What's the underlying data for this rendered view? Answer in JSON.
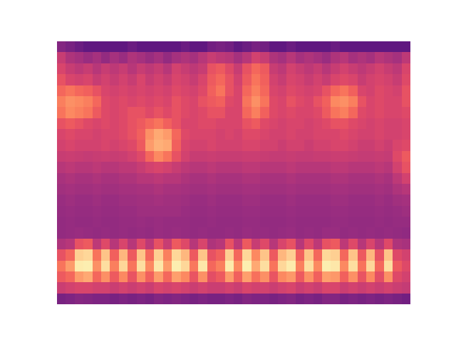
{
  "chart_data": {
    "type": "heatmap",
    "color": "magma",
    "color_range": [
      -20,
      100
    ],
    "tick_labels": false,
    "values": [
      [
        25,
        22,
        18,
        15,
        15,
        15,
        15,
        15,
        18,
        15,
        15,
        15,
        15,
        15,
        18,
        15,
        15,
        20,
        22,
        20,
        15,
        18,
        22,
        20,
        15,
        15,
        18,
        15,
        15,
        15,
        15,
        18,
        15,
        15,
        15,
        15,
        15,
        15,
        15,
        15
      ],
      [
        45,
        38,
        35,
        32,
        35,
        30,
        35,
        32,
        38,
        35,
        32,
        35,
        30,
        35,
        38,
        35,
        40,
        45,
        42,
        40,
        35,
        40,
        48,
        45,
        38,
        35,
        40,
        35,
        38,
        35,
        32,
        38,
        40,
        35,
        38,
        35,
        40,
        38,
        35,
        42
      ],
      [
        50,
        45,
        42,
        45,
        40,
        45,
        42,
        45,
        40,
        45,
        42,
        45,
        40,
        48,
        45,
        42,
        45,
        55,
        58,
        52,
        45,
        55,
        62,
        58,
        45,
        42,
        48,
        45,
        42,
        45,
        40,
        45,
        48,
        45,
        42,
        45,
        48,
        45,
        42,
        50
      ],
      [
        55,
        50,
        48,
        50,
        45,
        48,
        45,
        48,
        45,
        50,
        45,
        48,
        45,
        50,
        48,
        45,
        50,
        58,
        62,
        55,
        48,
        58,
        65,
        60,
        48,
        45,
        50,
        48,
        45,
        48,
        45,
        50,
        52,
        50,
        45,
        48,
        50,
        48,
        45,
        52
      ],
      [
        62,
        65,
        62,
        60,
        55,
        50,
        48,
        50,
        48,
        50,
        48,
        50,
        48,
        52,
        50,
        48,
        52,
        60,
        65,
        55,
        50,
        62,
        68,
        62,
        50,
        48,
        52,
        50,
        48,
        50,
        55,
        62,
        65,
        60,
        50,
        48,
        52,
        50,
        48,
        55
      ],
      [
        68,
        72,
        70,
        68,
        62,
        52,
        50,
        52,
        50,
        52,
        50,
        52,
        50,
        55,
        52,
        50,
        55,
        58,
        60,
        52,
        50,
        65,
        72,
        65,
        52,
        50,
        55,
        52,
        50,
        55,
        60,
        70,
        72,
        68,
        55,
        50,
        52,
        50,
        50,
        55
      ],
      [
        65,
        70,
        68,
        65,
        58,
        52,
        50,
        52,
        55,
        55,
        52,
        55,
        52,
        55,
        52,
        50,
        52,
        55,
        55,
        50,
        50,
        62,
        68,
        60,
        52,
        50,
        52,
        50,
        50,
        52,
        58,
        65,
        68,
        62,
        52,
        50,
        52,
        50,
        50,
        52
      ],
      [
        55,
        58,
        55,
        52,
        50,
        52,
        50,
        52,
        55,
        58,
        62,
        65,
        60,
        55,
        50,
        50,
        52,
        52,
        50,
        50,
        50,
        55,
        58,
        52,
        50,
        48,
        50,
        50,
        48,
        50,
        52,
        55,
        55,
        52,
        50,
        48,
        50,
        48,
        48,
        50
      ],
      [
        50,
        52,
        50,
        50,
        48,
        50,
        50,
        52,
        55,
        60,
        72,
        78,
        75,
        62,
        52,
        50,
        50,
        50,
        48,
        50,
        48,
        52,
        52,
        50,
        48,
        48,
        50,
        48,
        48,
        50,
        50,
        50,
        52,
        50,
        48,
        48,
        50,
        48,
        48,
        50
      ],
      [
        48,
        50,
        48,
        48,
        48,
        50,
        48,
        50,
        52,
        58,
        75,
        80,
        78,
        60,
        50,
        48,
        48,
        50,
        48,
        48,
        48,
        50,
        50,
        48,
        48,
        46,
        48,
        48,
        46,
        48,
        48,
        50,
        50,
        48,
        46,
        46,
        48,
        46,
        50,
        52
      ],
      [
        45,
        46,
        45,
        44,
        45,
        46,
        45,
        46,
        48,
        52,
        62,
        70,
        65,
        55,
        48,
        45,
        45,
        46,
        45,
        45,
        45,
        46,
        46,
        45,
        44,
        44,
        45,
        44,
        44,
        45,
        45,
        46,
        46,
        45,
        44,
        44,
        45,
        44,
        52,
        58
      ],
      [
        40,
        42,
        40,
        40,
        42,
        40,
        40,
        42,
        42,
        45,
        48,
        50,
        48,
        45,
        42,
        40,
        40,
        42,
        40,
        40,
        40,
        42,
        42,
        40,
        40,
        40,
        42,
        40,
        40,
        40,
        40,
        42,
        42,
        40,
        40,
        40,
        42,
        40,
        48,
        55
      ],
      [
        36,
        38,
        36,
        36,
        38,
        36,
        36,
        38,
        38,
        40,
        40,
        42,
        40,
        40,
        38,
        36,
        36,
        38,
        36,
        36,
        36,
        38,
        38,
        36,
        36,
        36,
        38,
        36,
        36,
        36,
        36,
        38,
        38,
        36,
        36,
        36,
        38,
        36,
        42,
        48
      ],
      [
        34,
        35,
        34,
        34,
        35,
        34,
        34,
        35,
        35,
        36,
        36,
        38,
        36,
        36,
        35,
        34,
        34,
        35,
        34,
        34,
        34,
        35,
        35,
        34,
        34,
        34,
        35,
        34,
        34,
        34,
        34,
        35,
        35,
        34,
        34,
        34,
        35,
        34,
        38,
        40
      ],
      [
        32,
        33,
        32,
        32,
        33,
        32,
        32,
        33,
        33,
        34,
        34,
        35,
        34,
        34,
        33,
        32,
        32,
        33,
        32,
        32,
        32,
        33,
        33,
        32,
        32,
        32,
        33,
        32,
        32,
        32,
        32,
        33,
        33,
        32,
        32,
        32,
        33,
        32,
        34,
        35
      ],
      [
        31,
        32,
        31,
        31,
        32,
        31,
        31,
        32,
        32,
        33,
        33,
        33,
        33,
        33,
        32,
        31,
        31,
        32,
        31,
        31,
        31,
        32,
        32,
        31,
        31,
        31,
        32,
        31,
        31,
        31,
        31,
        32,
        32,
        31,
        31,
        31,
        32,
        31,
        32,
        33
      ],
      [
        30,
        31,
        30,
        30,
        31,
        30,
        30,
        31,
        31,
        32,
        31,
        32,
        31,
        31,
        31,
        30,
        30,
        31,
        30,
        30,
        30,
        31,
        31,
        30,
        30,
        30,
        31,
        30,
        30,
        30,
        30,
        31,
        31,
        30,
        30,
        30,
        31,
        30,
        31,
        31
      ],
      [
        30,
        31,
        32,
        31,
        30,
        31,
        30,
        31,
        30,
        31,
        30,
        32,
        31,
        32,
        31,
        30,
        31,
        30,
        30,
        31,
        30,
        32,
        31,
        31,
        30,
        31,
        32,
        30,
        31,
        30,
        32,
        32,
        30,
        31,
        30,
        31,
        30,
        31,
        30,
        29
      ],
      [
        38,
        40,
        55,
        58,
        42,
        52,
        40,
        50,
        40,
        52,
        42,
        55,
        45,
        58,
        52,
        40,
        50,
        38,
        40,
        55,
        42,
        58,
        45,
        52,
        40,
        50,
        55,
        40,
        52,
        42,
        55,
        58,
        42,
        52,
        40,
        50,
        40,
        52,
        38,
        36
      ],
      [
        55,
        62,
        88,
        90,
        65,
        85,
        60,
        82,
        58,
        85,
        62,
        88,
        68,
        90,
        82,
        58,
        85,
        55,
        60,
        88,
        62,
        90,
        70,
        85,
        58,
        82,
        88,
        60,
        85,
        62,
        90,
        88,
        62,
        85,
        58,
        82,
        55,
        85,
        52,
        48
      ],
      [
        65,
        75,
        95,
        96,
        72,
        92,
        68,
        90,
        65,
        92,
        70,
        94,
        75,
        96,
        90,
        66,
        94,
        62,
        68,
        95,
        70,
        96,
        78,
        92,
        65,
        90,
        95,
        68,
        92,
        70,
        96,
        94,
        70,
        92,
        65,
        90,
        62,
        92,
        58,
        52
      ],
      [
        58,
        62,
        75,
        78,
        62,
        72,
        58,
        70,
        56,
        72,
        60,
        75,
        62,
        76,
        70,
        56,
        72,
        54,
        58,
        75,
        60,
        76,
        64,
        72,
        56,
        70,
        74,
        58,
        72,
        60,
        76,
        74,
        60,
        72,
        56,
        70,
        54,
        72,
        52,
        48
      ],
      [
        46,
        48,
        50,
        50,
        48,
        48,
        46,
        48,
        46,
        48,
        46,
        50,
        48,
        50,
        48,
        46,
        48,
        46,
        46,
        48,
        46,
        50,
        48,
        48,
        46,
        48,
        50,
        46,
        48,
        46,
        50,
        50,
        46,
        48,
        46,
        48,
        46,
        48,
        46,
        44
      ],
      [
        22,
        24,
        26,
        25,
        24,
        24,
        22,
        24,
        22,
        24,
        22,
        25,
        24,
        25,
        24,
        22,
        24,
        22,
        22,
        24,
        22,
        25,
        24,
        24,
        22,
        24,
        25,
        22,
        24,
        22,
        25,
        25,
        22,
        24,
        22,
        24,
        22,
        24,
        22,
        20
      ]
    ]
  }
}
